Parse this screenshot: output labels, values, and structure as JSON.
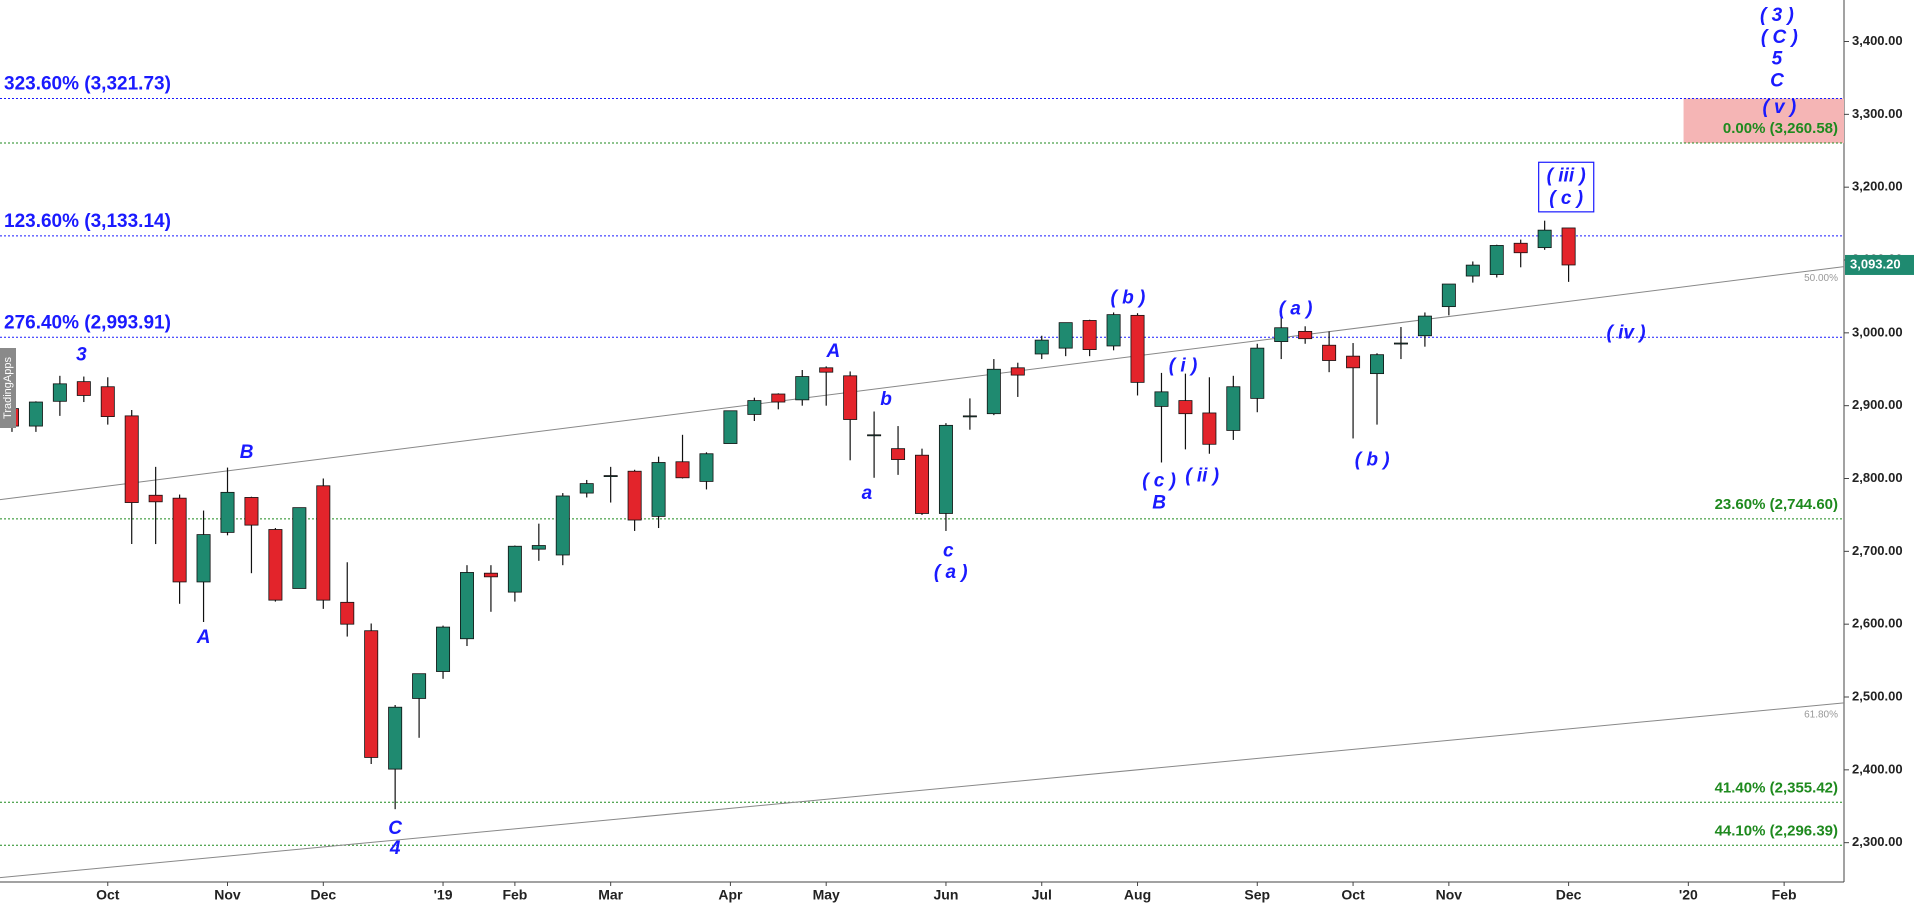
{
  "chart_data": {
    "type": "candlestick",
    "categories": [
      null,
      null,
      null,
      null,
      "Oct",
      null,
      null,
      null,
      null,
      "Nov",
      null,
      null,
      null,
      "Dec",
      null,
      null,
      null,
      null,
      "'19",
      null,
      null,
      "Feb",
      null,
      null,
      null,
      "Mar",
      null,
      null,
      null,
      null,
      "Apr",
      null,
      null,
      null,
      "May",
      null,
      null,
      null,
      null,
      "Jun",
      null,
      null,
      null,
      "Jul",
      null,
      null,
      null,
      "Aug",
      null,
      null,
      null,
      null,
      "Sep",
      null,
      null,
      null,
      "Oct",
      null,
      null,
      null,
      "Nov",
      null,
      null,
      null,
      null,
      "Dec",
      null,
      null,
      null,
      null,
      "'20",
      null,
      null,
      null,
      "Feb",
      null,
      null
    ],
    "open": [
      2896,
      2872,
      2906,
      2933,
      2926,
      2886,
      2777,
      2773,
      2658,
      2726,
      2774,
      2730,
      2649,
      2790,
      2630,
      2591,
      2401,
      2498,
      2535,
      2580,
      2670,
      2644,
      2703,
      2695,
      2780,
      2804,
      2810,
      2748,
      2823,
      2796,
      2848,
      2888,
      2916,
      2908,
      2952,
      2941,
      2860,
      2841,
      2832,
      2752,
      2885,
      2889,
      2952,
      2971,
      2979,
      3017,
      2982,
      3024,
      2899,
      2907,
      2890,
      2866,
      2910,
      2988,
      3002,
      2983,
      2968,
      2944,
      2986,
      2996,
      3036,
      3078,
      3080,
      3123,
      3117,
      3144,
      null,
      null,
      null,
      null,
      null,
      null,
      null,
      null,
      null,
      null,
      null
    ],
    "high": [
      2916,
      2906,
      2941,
      2940,
      2939,
      2894,
      2816,
      2778,
      2756,
      2815,
      2775,
      2732,
      2760,
      2800,
      2685,
      2601,
      2489,
      2532,
      2598,
      2681,
      2681,
      2708,
      2738,
      2780,
      2798,
      2816,
      2812,
      2830,
      2860,
      2836,
      2893,
      2911,
      2917,
      2949,
      2954,
      2947,
      2892,
      2872,
      2841,
      2876,
      2910,
      2964,
      2959,
      2996,
      3014,
      3018,
      3028,
      3027,
      2945,
      2944,
      2939,
      2941,
      2985,
      3021,
      3009,
      3002,
      2986,
      2972,
      3008,
      3028,
      3067,
      3098,
      3121,
      3128,
      3154,
      3144,
      null,
      null,
      null,
      null,
      null,
      null,
      null,
      null,
      null,
      null,
      null
    ],
    "low": [
      2864,
      2864,
      2886,
      2905,
      2874,
      2710,
      2710,
      2628,
      2603,
      2722,
      2670,
      2631,
      2649,
      2621,
      2583,
      2408,
      2346,
      2444,
      2525,
      2570,
      2617,
      2631,
      2687,
      2681,
      2774,
      2767,
      2728,
      2732,
      2800,
      2785,
      2848,
      2879,
      2895,
      2900,
      2900,
      2825,
      2801,
      2805,
      2750,
      2728,
      2867,
      2887,
      2912,
      2964,
      2968,
      2968,
      2976,
      2914,
      2822,
      2840,
      2834,
      2853,
      2891,
      2964,
      2985,
      2946,
      2855,
      2874,
      2964,
      2981,
      3024,
      3069,
      3076,
      3090,
      3114,
      3070,
      null,
      null,
      null,
      null,
      null,
      null,
      null,
      null,
      null,
      null,
      null
    ],
    "close": [
      2872,
      2905,
      2930,
      2914,
      2885,
      2767,
      2768,
      2658,
      2723,
      2781,
      2736,
      2633,
      2760,
      2633,
      2600,
      2417,
      2486,
      2532,
      2596,
      2671,
      2665,
      2707,
      2708,
      2776,
      2793,
      2804,
      2743,
      2822,
      2801,
      2834,
      2893,
      2907,
      2905,
      2940,
      2946,
      2881,
      2860,
      2826,
      2752,
      2873,
      2886,
      2950,
      2942,
      2990,
      3014,
      2977,
      3025,
      2932,
      2919,
      2889,
      2847,
      2926,
      2979,
      3007,
      2992,
      2962,
      2952,
      2970,
      2986,
      3023,
      3067,
      3093,
      3120,
      3110,
      3141,
      3093.2,
      null,
      null,
      null,
      null,
      null,
      null,
      null,
      null,
      null,
      null,
      null
    ],
    "up_color": "#1f8a70",
    "down_color": "#e3242b",
    "ylim": [
      2246,
      3457
    ],
    "yticks": [
      {
        "value": 2300,
        "label": "2,300.00"
      },
      {
        "value": 2400,
        "label": "2,400.00"
      },
      {
        "value": 2500,
        "label": "2,500.00"
      },
      {
        "value": 2600,
        "label": "2,600.00"
      },
      {
        "value": 2700,
        "label": "2,700.00"
      },
      {
        "value": 2800,
        "label": "2,800.00"
      },
      {
        "value": 2900,
        "label": "2,900.00"
      },
      {
        "value": 3000,
        "label": "3,000.00"
      },
      {
        "value": 3100,
        "label": "3,100.00"
      },
      {
        "value": 3200,
        "label": "3,200.00"
      },
      {
        "value": 3300,
        "label": "3,300.00"
      },
      {
        "value": 3400,
        "label": "3,400.00"
      }
    ],
    "levels": [
      {
        "value": 3321.73,
        "label": "323.60% (3,321.73)",
        "color": "#1a1aff",
        "side": "left"
      },
      {
        "value": 3260.58,
        "label": "0.00% (3,260.58)",
        "color": "#1e8a1e",
        "side": "right"
      },
      {
        "value": 3133.14,
        "label": "123.60% (3,133.14)",
        "color": "#1a1aff",
        "side": "left"
      },
      {
        "value": 2993.91,
        "label": "276.40% (2,993.91)",
        "color": "#1a1aff",
        "side": "left"
      },
      {
        "value": 2744.6,
        "label": "23.60% (2,744.60)",
        "color": "#1e8a1e",
        "side": "right"
      },
      {
        "value": 2355.42,
        "label": "41.40% (2,355.42)",
        "color": "#1e8a1e",
        "side": "right"
      },
      {
        "value": 2296.39,
        "label": "44.10% (2,296.39)",
        "color": "#1e8a1e",
        "side": "right"
      }
    ],
    "zone": {
      "x_start": 69.8,
      "low": 3260.58,
      "high": 3321.73,
      "color": "#f5b5b5"
    },
    "trendlines": [
      {
        "start": [
          -0.5,
          2771
        ],
        "end": [
          76.5,
          3091
        ],
        "label": "50.00%",
        "color": "#888888"
      },
      {
        "start": [
          -0.5,
          2252
        ],
        "end": [
          76.5,
          2492
        ],
        "label": "61.80%",
        "color": "#888888"
      }
    ],
    "annotations": [
      {
        "text": "3",
        "x": 2.9,
        "y": 2969
      },
      {
        "text": "B",
        "x": 9.8,
        "y": 2835
      },
      {
        "text": "A",
        "x": 8,
        "y": 2581
      },
      {
        "text": "C",
        "x": 16,
        "y": 2319
      },
      {
        "text": "4",
        "x": 16,
        "y": 2291
      },
      {
        "text": "A",
        "x": 34.3,
        "y": 2974
      },
      {
        "text": "b",
        "x": 36.5,
        "y": 2908
      },
      {
        "text": "a",
        "x": 35.7,
        "y": 2779
      },
      {
        "text": "c",
        "x": 39.1,
        "y": 2700
      },
      {
        "text": "( a )",
        "x": 39.2,
        "y": 2670
      },
      {
        "text": "( b )",
        "x": 46.6,
        "y": 3047
      },
      {
        "text": "( i )",
        "x": 48.9,
        "y": 2954
      },
      {
        "text": "( c )",
        "x": 47.9,
        "y": 2796
      },
      {
        "text": "B",
        "x": 47.9,
        "y": 2766
      },
      {
        "text": "( ii )",
        "x": 49.7,
        "y": 2803
      },
      {
        "text": "( a )",
        "x": 53.6,
        "y": 3032
      },
      {
        "text": "( b )",
        "x": 56.8,
        "y": 2825
      },
      {
        "text": "( iv )",
        "x": 67.4,
        "y": 2999
      },
      {
        "text": "( iii )",
        "x": 64.9,
        "y": 3215,
        "boxed": true
      },
      {
        "text": "( c )",
        "x": 64.9,
        "y": 3184,
        "boxed": true
      },
      {
        "text": "( 3 )",
        "x": 73.7,
        "y": 3435
      },
      {
        "text": "( C )",
        "x": 73.8,
        "y": 3405
      },
      {
        "text": "5",
        "x": 73.7,
        "y": 3375
      },
      {
        "text": "C",
        "x": 73.7,
        "y": 3345
      },
      {
        "text": "( v )",
        "x": 73.8,
        "y": 3309
      }
    ],
    "last_price": {
      "value": 3093.2,
      "label": "3,093.20",
      "color": "#1f8a70"
    },
    "watermark": "TradingApps"
  }
}
